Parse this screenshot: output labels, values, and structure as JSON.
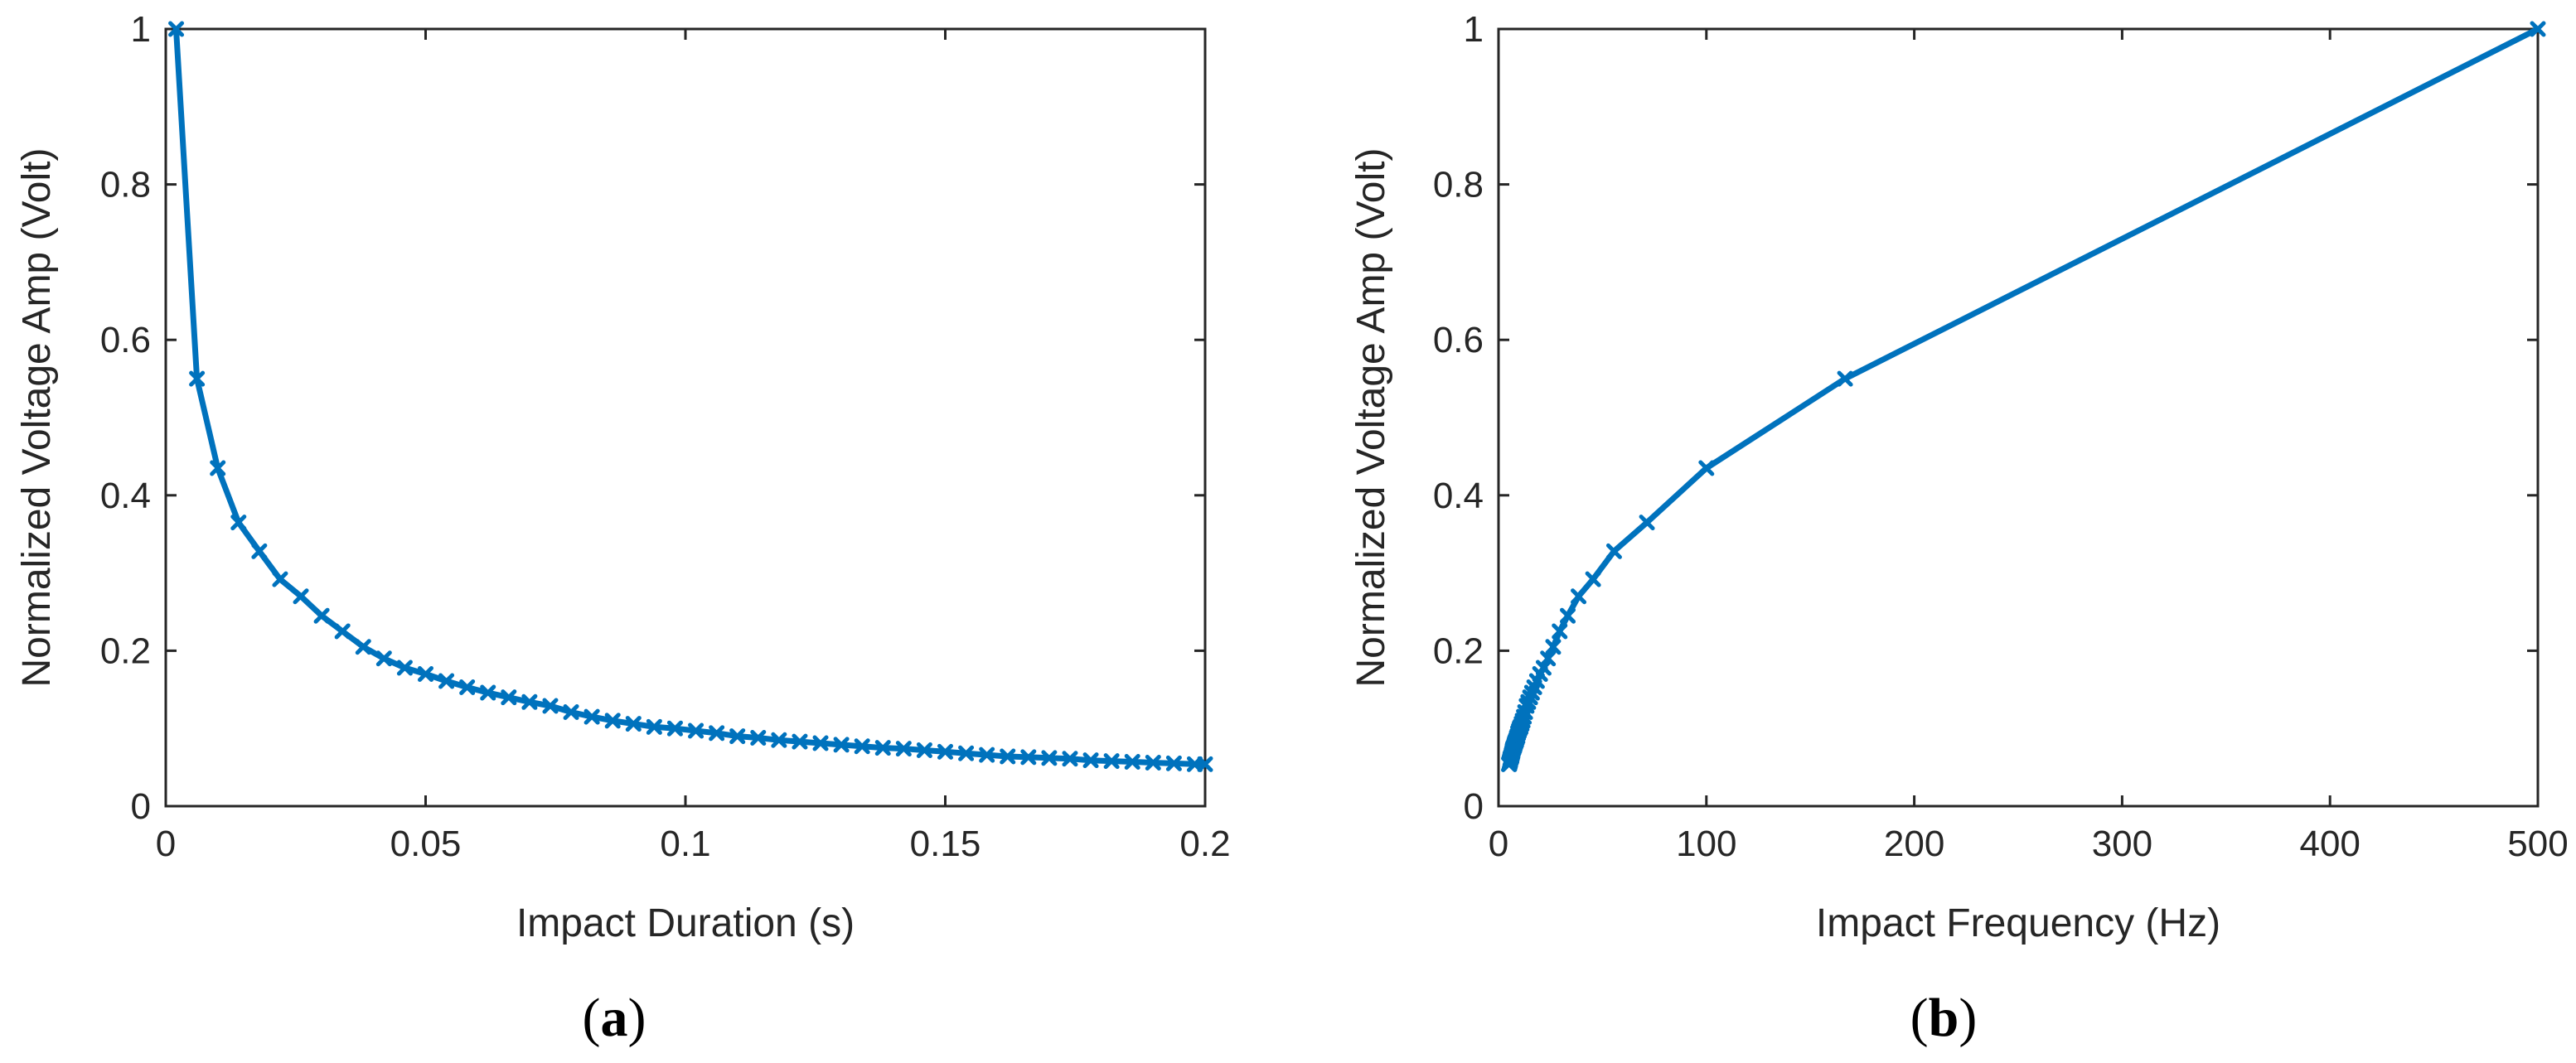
{
  "colors": {
    "series": "#0072BD",
    "axis": "#262626"
  },
  "chart_data": [
    {
      "id": "a",
      "type": "line",
      "panel_label": "a",
      "title": "",
      "xlabel": "Impact Duration (s)",
      "ylabel": "Normalized Voltage Amp (Volt)",
      "xlim": [
        0,
        0.2
      ],
      "ylim": [
        0,
        1
      ],
      "xticks": [
        0,
        0.05,
        0.1,
        0.15,
        0.2
      ],
      "xtick_labels": [
        "0",
        "0.05",
        "0.1",
        "0.15",
        "0.2"
      ],
      "yticks": [
        0,
        0.2,
        0.4,
        0.6,
        0.8,
        1
      ],
      "ytick_labels": [
        "0",
        "0.2",
        "0.4",
        "0.6",
        "0.8",
        "1"
      ],
      "grid": false,
      "series": [
        {
          "name": "Normalized Voltage Amp",
          "marker": "x",
          "x": [
            0.002,
            0.006,
            0.01,
            0.014,
            0.018,
            0.022,
            0.026,
            0.03,
            0.034,
            0.038,
            0.042,
            0.046,
            0.05,
            0.054,
            0.058,
            0.062,
            0.066,
            0.07,
            0.074,
            0.078,
            0.082,
            0.086,
            0.09,
            0.094,
            0.098,
            0.102,
            0.106,
            0.11,
            0.114,
            0.118,
            0.122,
            0.126,
            0.13,
            0.134,
            0.138,
            0.142,
            0.146,
            0.15,
            0.154,
            0.158,
            0.162,
            0.166,
            0.17,
            0.174,
            0.178,
            0.182,
            0.186,
            0.19,
            0.194,
            0.198,
            0.2
          ],
          "values": [
            1.0,
            0.55,
            0.435,
            0.365,
            0.328,
            0.292,
            0.27,
            0.245,
            0.225,
            0.205,
            0.19,
            0.178,
            0.17,
            0.161,
            0.153,
            0.146,
            0.14,
            0.134,
            0.129,
            0.121,
            0.115,
            0.11,
            0.106,
            0.102,
            0.1,
            0.097,
            0.094,
            0.09,
            0.088,
            0.085,
            0.083,
            0.081,
            0.079,
            0.077,
            0.075,
            0.074,
            0.072,
            0.07,
            0.068,
            0.066,
            0.064,
            0.063,
            0.062,
            0.061,
            0.059,
            0.058,
            0.057,
            0.056,
            0.055,
            0.054,
            0.054
          ]
        }
      ]
    },
    {
      "id": "b",
      "type": "line",
      "panel_label": "b",
      "title": "",
      "xlabel": "Impact Frequency (Hz)",
      "ylabel": "Normalized Voltage Amp (Volt)",
      "xlim": [
        0,
        500
      ],
      "ylim": [
        0,
        1
      ],
      "xticks": [
        0,
        100,
        200,
        300,
        400,
        500
      ],
      "xtick_labels": [
        "0",
        "100",
        "200",
        "300",
        "400",
        "500"
      ],
      "yticks": [
        0,
        0.2,
        0.4,
        0.6,
        0.8,
        1
      ],
      "ytick_labels": [
        "0",
        "0.2",
        "0.4",
        "0.6",
        "0.8",
        "1"
      ],
      "grid": false,
      "series": [
        {
          "name": "Normalized Voltage Amp",
          "marker": "x",
          "x": [
            500,
            166.7,
            100,
            71.4,
            55.6,
            45.5,
            38.5,
            33.3,
            29.4,
            26.3,
            23.8,
            21.7,
            20,
            18.5,
            17.2,
            16.1,
            15.2,
            14.3,
            13.5,
            12.8,
            12.2,
            11.6,
            11.1,
            10.6,
            10.2,
            9.8,
            9.4,
            9.1,
            8.8,
            8.5,
            8.2,
            7.9,
            7.7,
            7.5,
            7.2,
            7.0,
            6.8,
            6.7,
            6.5,
            6.3,
            6.2,
            6.0,
            5.9,
            5.7,
            5.6,
            5.5,
            5.4,
            5.3,
            5.2,
            5.1,
            5.0
          ],
          "values": [
            1.0,
            0.55,
            0.435,
            0.365,
            0.328,
            0.292,
            0.27,
            0.245,
            0.225,
            0.205,
            0.19,
            0.178,
            0.17,
            0.161,
            0.153,
            0.146,
            0.14,
            0.134,
            0.129,
            0.121,
            0.115,
            0.11,
            0.106,
            0.102,
            0.1,
            0.097,
            0.094,
            0.09,
            0.088,
            0.085,
            0.083,
            0.081,
            0.079,
            0.077,
            0.075,
            0.074,
            0.072,
            0.07,
            0.068,
            0.066,
            0.064,
            0.063,
            0.062,
            0.061,
            0.059,
            0.058,
            0.057,
            0.056,
            0.055,
            0.054,
            0.054
          ]
        }
      ]
    }
  ]
}
